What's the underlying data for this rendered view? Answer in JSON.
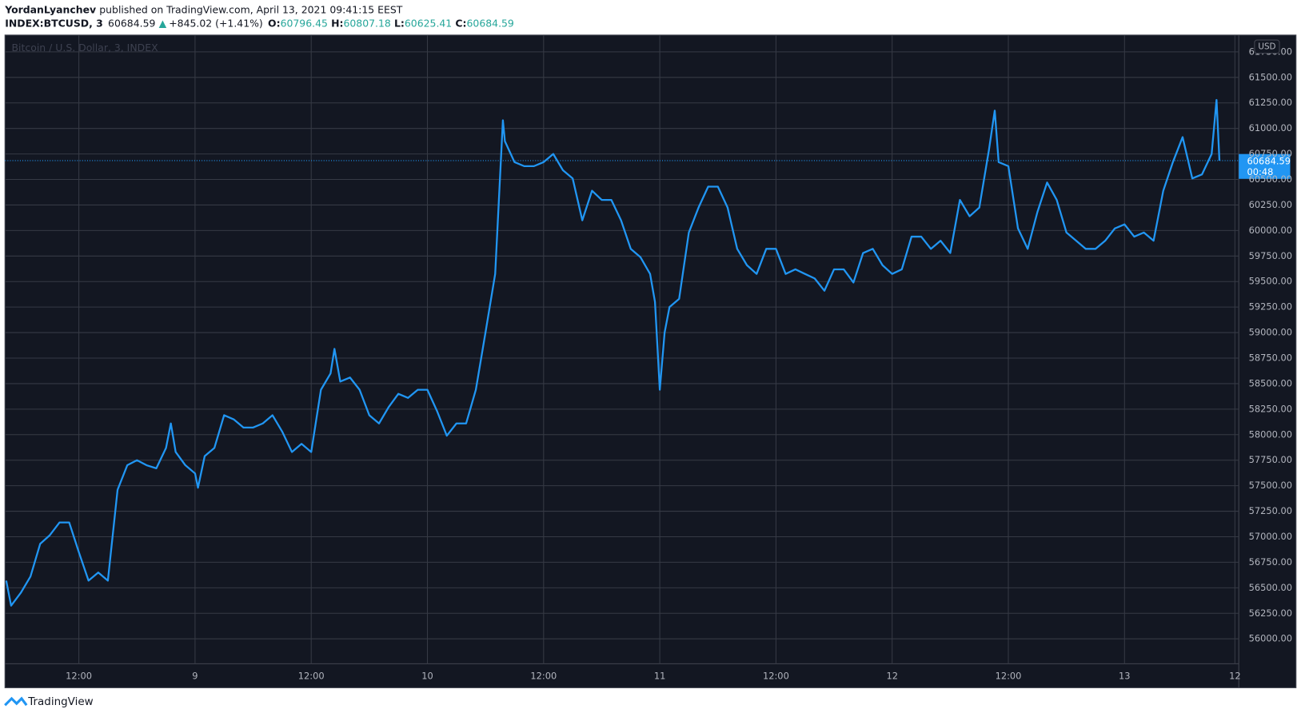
{
  "header": {
    "author": "YordanLyanchev",
    "published": "published on TradingView.com, April 13, 2021 09:41:15 EEST"
  },
  "symbol": {
    "ticker": "INDEX:BTCUSD, 3",
    "last": "60684.59",
    "change": "+845.02 (+1.41%)",
    "ohlc": [
      {
        "label": "O:",
        "value": "60796.45"
      },
      {
        "label": "H:",
        "value": "60807.18"
      },
      {
        "label": "L:",
        "value": "60625.41"
      },
      {
        "label": "C:",
        "value": "60684.59"
      }
    ]
  },
  "footer": {
    "brand": "TradingView"
  },
  "chart_data": {
    "type": "line",
    "title": "Bitcoin / U.S. Dollar, 3, INDEX",
    "currency": "USD",
    "color": "#2196f3",
    "x": [
      4.5,
      5,
      6,
      7,
      8,
      9,
      10,
      11,
      12,
      13,
      14,
      15,
      16,
      17,
      18,
      19,
      20,
      21,
      21.5,
      22,
      23,
      24,
      24.3,
      25,
      26,
      27,
      28,
      29,
      30,
      31,
      32,
      33,
      34,
      35,
      36,
      37,
      38,
      38.4,
      39,
      40,
      41,
      42,
      43,
      44,
      45,
      46,
      47,
      48,
      49,
      50,
      51,
      52,
      53,
      54,
      55,
      55.8,
      56,
      57,
      58,
      59,
      60,
      61,
      62,
      63,
      64,
      65,
      66,
      67,
      68,
      69,
      70,
      71,
      71.5,
      72,
      72.5,
      73,
      74,
      75,
      76,
      77,
      78,
      79,
      80,
      81,
      82,
      83,
      84,
      85,
      86,
      87,
      88,
      89,
      90,
      91,
      92,
      93,
      94,
      95,
      96,
      97,
      98,
      99,
      100,
      101,
      102,
      103,
      104,
      105,
      106,
      106.6,
      107,
      108,
      109,
      110,
      111,
      112,
      113,
      114,
      115,
      116,
      117,
      118,
      119,
      120,
      121,
      122,
      123,
      124,
      125,
      126,
      127,
      128,
      129,
      129.5,
      129.8
    ],
    "values": [
      56570,
      56325,
      56450,
      56610,
      56930,
      57015,
      57140,
      57140,
      56850,
      56570,
      56650,
      56570,
      57460,
      57700,
      57750,
      57700,
      57670,
      57870,
      58110,
      57830,
      57700,
      57620,
      57480,
      57790,
      57870,
      58190,
      58150,
      58070,
      58070,
      58110,
      58190,
      58030,
      57830,
      57910,
      57830,
      58440,
      58600,
      58840,
      58520,
      58560,
      58440,
      58190,
      58110,
      58270,
      58400,
      58360,
      58440,
      58440,
      58230,
      57990,
      58110,
      58110,
      58440,
      59000,
      59575,
      61080,
      60875,
      60670,
      60630,
      60630,
      60670,
      60750,
      60590,
      60510,
      60100,
      60390,
      60300,
      60300,
      60100,
      59820,
      59740,
      59575,
      59300,
      58440,
      59000,
      59250,
      59330,
      59980,
      60225,
      60430,
      60430,
      60225,
      59820,
      59660,
      59575,
      59820,
      59820,
      59575,
      59620,
      59575,
      59530,
      59410,
      59620,
      59620,
      59490,
      59780,
      59820,
      59660,
      59575,
      59620,
      59940,
      59940,
      59820,
      59900,
      59780,
      60300,
      60140,
      60225,
      60790,
      61175,
      60670,
      60630,
      60020,
      59820,
      60180,
      60470,
      60300,
      59980,
      59900,
      59820,
      59820,
      59900,
      60020,
      60060,
      59940,
      59980,
      59900,
      60390,
      60670,
      60915,
      60510,
      60550,
      60750,
      61280,
      60684.59
    ],
    "last_price": {
      "value": 60684.59,
      "label": "60684.59"
    },
    "countdown": "00:48",
    "xlim": [
      4.37,
      131.8
    ],
    "xticks": [
      {
        "value": 12,
        "label": "12:00"
      },
      {
        "value": 24,
        "label": "9"
      },
      {
        "value": 36,
        "label": "12:00"
      },
      {
        "value": 48,
        "label": "10"
      },
      {
        "value": 60,
        "label": "12:00"
      },
      {
        "value": 72,
        "label": "11"
      },
      {
        "value": 84,
        "label": "12:00"
      },
      {
        "value": 96,
        "label": "12"
      },
      {
        "value": 108,
        "label": "12:00"
      },
      {
        "value": 120,
        "label": "13"
      },
      {
        "value": 131.4,
        "label": "12"
      }
    ],
    "ylim": [
      55756,
      61915
    ],
    "yticks": [
      {
        "value": 56000,
        "label": "56000.00"
      },
      {
        "value": 56250,
        "label": "56250.00"
      },
      {
        "value": 56500,
        "label": "56500.00"
      },
      {
        "value": 56750,
        "label": "56750.00"
      },
      {
        "value": 57000,
        "label": "57000.00"
      },
      {
        "value": 57250,
        "label": "57250.00"
      },
      {
        "value": 57500,
        "label": "57500.00"
      },
      {
        "value": 57750,
        "label": "57750.00"
      },
      {
        "value": 58000,
        "label": "58000.00"
      },
      {
        "value": 58250,
        "label": "58250.00"
      },
      {
        "value": 58500,
        "label": "58500.00"
      },
      {
        "value": 58750,
        "label": "58750.00"
      },
      {
        "value": 59000,
        "label": "59000.00"
      },
      {
        "value": 59250,
        "label": "59250.00"
      },
      {
        "value": 59500,
        "label": "59500.00"
      },
      {
        "value": 59750,
        "label": "59750.00"
      },
      {
        "value": 60000,
        "label": "60000.00"
      },
      {
        "value": 60250,
        "label": "60250.00"
      },
      {
        "value": 60500,
        "label": "60500.00"
      },
      {
        "value": 60750,
        "label": "60750.00"
      },
      {
        "value": 61000,
        "label": "61000.00"
      },
      {
        "value": 61250,
        "label": "61250.00"
      },
      {
        "value": 61500,
        "label": "61500.00"
      },
      {
        "value": 61750,
        "label": "61750.00"
      }
    ],
    "grid": true
  }
}
